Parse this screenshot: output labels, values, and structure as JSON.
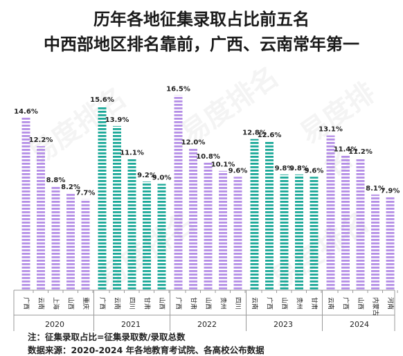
{
  "title_line1": "历年各地征集录取占比前五名",
  "title_line2": "中西部地区排名靠前，广西、云南常年第一",
  "note": "注：征集录取占比=征集录取数/录取总数",
  "source": "数据来源：2020-2024 年各地教育考试院、各高校公布数据",
  "watermark": "易度排名",
  "colors": {
    "purple": "#b48ee6",
    "teal": "#1aa898",
    "axis": "#999999",
    "text": "#222222"
  },
  "chart_data": {
    "type": "bar",
    "title": "",
    "xlabel": "",
    "ylabel": "",
    "ylim": [
      0,
      18
    ],
    "grid": false,
    "groups": [
      {
        "year": "2020",
        "color": "purple",
        "bars": [
          {
            "label": "广西",
            "value": 14.6,
            "value_label": "14.6%"
          },
          {
            "label": "云南",
            "value": 12.2,
            "value_label": "12.2%"
          },
          {
            "label": "上海",
            "value": 8.8,
            "value_label": "8.8%"
          },
          {
            "label": "山西",
            "value": 8.2,
            "value_label": "8.2%"
          },
          {
            "label": "重庆",
            "value": 7.7,
            "value_label": "7.7%"
          }
        ]
      },
      {
        "year": "2021",
        "color": "teal",
        "bars": [
          {
            "label": "广西",
            "value": 15.6,
            "value_label": "15.6%"
          },
          {
            "label": "云南",
            "value": 13.9,
            "value_label": "13.9%"
          },
          {
            "label": "四川",
            "value": 11.1,
            "value_label": "11.1%"
          },
          {
            "label": "甘肃",
            "value": 9.2,
            "value_label": "9.2%"
          },
          {
            "label": "山西",
            "value": 9.0,
            "value_label": "9.0%"
          }
        ]
      },
      {
        "year": "2022",
        "color": "purple",
        "bars": [
          {
            "label": "广西",
            "value": 16.5,
            "value_label": "16.5%"
          },
          {
            "label": "甘肃",
            "value": 12.0,
            "value_label": "12.0%"
          },
          {
            "label": "山西",
            "value": 10.8,
            "value_label": "10.8%"
          },
          {
            "label": "贵州",
            "value": 10.1,
            "value_label": "10.1%"
          },
          {
            "label": "四川",
            "value": 9.6,
            "value_label": "9.6%"
          }
        ]
      },
      {
        "year": "2023",
        "color": "teal",
        "bars": [
          {
            "label": "云南",
            "value": 12.8,
            "value_label": "12.8%"
          },
          {
            "label": "广西",
            "value": 12.6,
            "value_label": "12.6%"
          },
          {
            "label": "山西",
            "value": 9.8,
            "value_label": "9.8%"
          },
          {
            "label": "贵州",
            "value": 9.8,
            "value_label": "9.8%"
          },
          {
            "label": "甘肃",
            "value": 9.6,
            "value_label": "9.6%"
          }
        ]
      },
      {
        "year": "2024",
        "color": "purple",
        "bars": [
          {
            "label": "云南",
            "value": 13.1,
            "value_label": "13.1%"
          },
          {
            "label": "广西",
            "value": 11.4,
            "value_label": "11.4%"
          },
          {
            "label": "山西",
            "value": 11.2,
            "value_label": "11.2%"
          },
          {
            "label": "内蒙古",
            "value": 8.1,
            "value_label": "8.1%"
          },
          {
            "label": "河南",
            "value": 7.9,
            "value_label": "7.9%"
          }
        ]
      }
    ]
  }
}
